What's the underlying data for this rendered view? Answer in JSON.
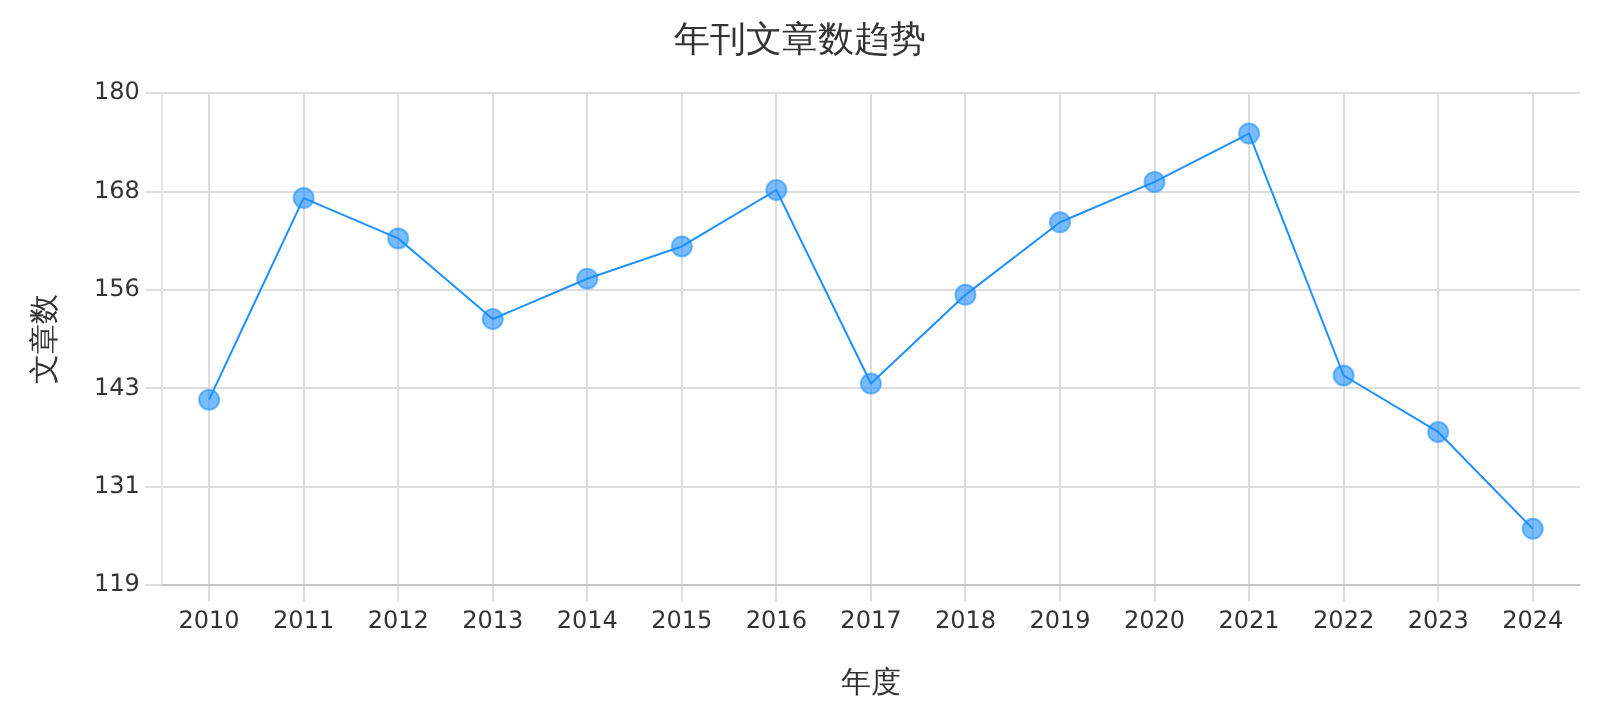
{
  "chart_data": {
    "type": "line",
    "title": "年刊文章数趋势",
    "xlabel": "年度",
    "ylabel": "文章数",
    "categories": [
      "2010",
      "2011",
      "2012",
      "2013",
      "2014",
      "2015",
      "2016",
      "2017",
      "2018",
      "2019",
      "2020",
      "2021",
      "2022",
      "2023",
      "2024"
    ],
    "series": [
      {
        "color": "#1e90ff",
        "values": [
          142,
          167,
          162,
          152,
          157,
          161,
          168,
          144,
          155,
          164,
          169,
          175,
          145,
          138,
          126
        ]
      }
    ],
    "ylim": [
      119,
      180
    ],
    "yticks": [
      119,
      {
        "value": 131.2,
        "label": "131"
      },
      {
        "value": 143.4,
        "label": "143"
      },
      {
        "value": 155.6,
        "label": "156"
      },
      {
        "value": 167.8,
        "label": "168"
      },
      180
    ],
    "grid": true,
    "marker": "circle",
    "line_style": "solid",
    "legend": false
  }
}
